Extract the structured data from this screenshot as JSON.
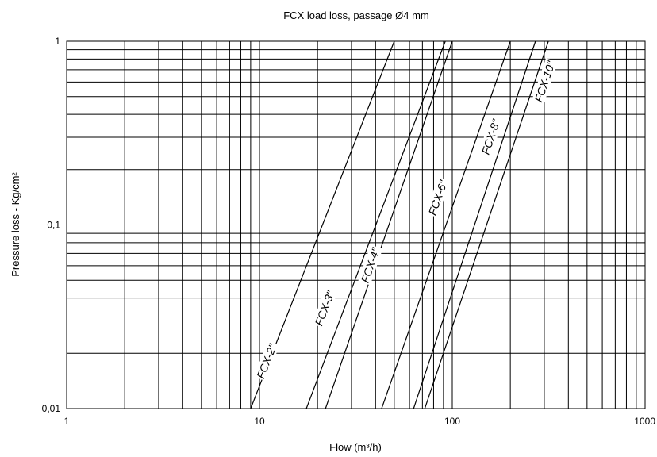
{
  "chart_data": {
    "type": "line",
    "title": "FCX load loss, passage Ø4 mm",
    "xlabel": "Flow (m³/h)",
    "ylabel": "Pressure loss - Kg/cm²",
    "xscale": "log",
    "yscale": "log",
    "xlim": [
      1,
      1000
    ],
    "ylim": [
      0.01,
      1
    ],
    "grid": true,
    "legend": "none",
    "x_tick_labels": [
      "1",
      "10",
      "100",
      "1000"
    ],
    "y_tick_labels": [
      "0,01",
      "0,1",
      "1"
    ],
    "series": [
      {
        "name": "FCX-2\"",
        "x": [
          9,
          50
        ],
        "y": [
          0.01,
          1
        ]
      },
      {
        "name": "FCX-3\"",
        "x": [
          17.5,
          92
        ],
        "y": [
          0.01,
          1
        ]
      },
      {
        "name": "FCX-4\"",
        "x": [
          22,
          100
        ],
        "y": [
          0.01,
          1
        ]
      },
      {
        "name": "FCX-6\"",
        "x": [
          43,
          200
        ],
        "y": [
          0.01,
          1
        ]
      },
      {
        "name": "FCX-8\"",
        "x": [
          63,
          270
        ],
        "y": [
          0.01,
          1
        ]
      },
      {
        "name": "FCX-10\"",
        "x": [
          72,
          315
        ],
        "y": [
          0.01,
          1
        ]
      }
    ],
    "series_labels": [
      {
        "text": "FCX-2\"",
        "x": 11,
        "y": 0.018
      },
      {
        "text": "FCX-3\"",
        "x": 22,
        "y": 0.035
      },
      {
        "text": "FCX-4\"",
        "x": 38,
        "y": 0.06
      },
      {
        "text": "FCX-6\"",
        "x": 85,
        "y": 0.14
      },
      {
        "text": "FCX-8\"",
        "x": 160,
        "y": 0.3
      },
      {
        "text": "FCX-10\"",
        "x": 305,
        "y": 0.6
      }
    ]
  }
}
